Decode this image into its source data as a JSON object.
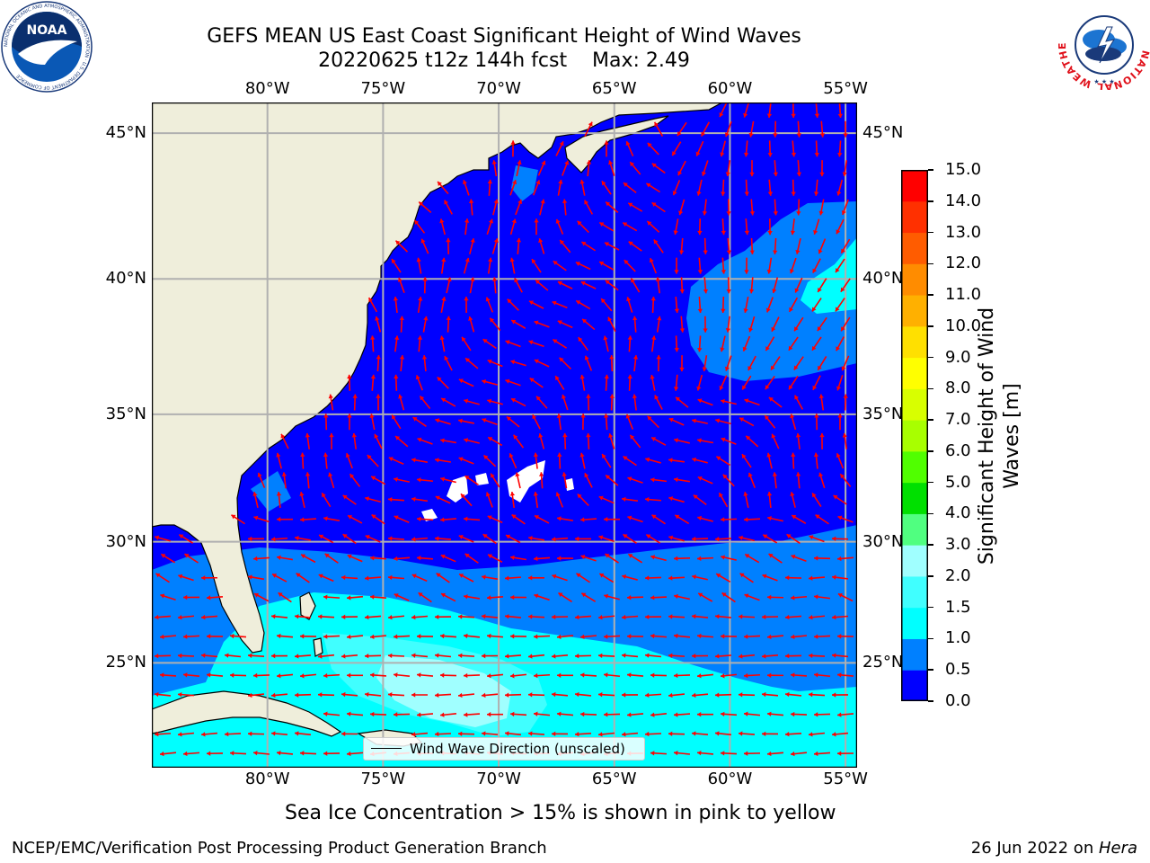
{
  "header": {
    "title_line1": "GEFS MEAN US East Coast Significant Height of Wind Waves",
    "title_line2": "20220625 t12z 144h fcst    Max: 2.49"
  },
  "logos": {
    "noaa_text": "NOAA",
    "noaa_ring_text": "NATIONAL OCEANIC AND ATMOSPHERIC ADMINISTRATION · U.S. DEPARTMENT OF COMMERCE",
    "nws_ring_text": "NATIONAL WEATHER SERVICE"
  },
  "map": {
    "extent": {
      "lon_min": -85,
      "lon_max": -54.5,
      "lat_min": 20.5,
      "lat_max": 46
    },
    "lon_ticks": [
      {
        "lon": -80,
        "label": "80°W"
      },
      {
        "lon": -75,
        "label": "75°W"
      },
      {
        "lon": -70,
        "label": "70°W"
      },
      {
        "lon": -65,
        "label": "65°W"
      },
      {
        "lon": -60,
        "label": "60°W"
      },
      {
        "lon": -55,
        "label": "55°W"
      }
    ],
    "lat_ticks": [
      {
        "lat": 45,
        "label": "45°N"
      },
      {
        "lat": 40,
        "label": "40°N"
      },
      {
        "lat": 35,
        "label": "35°N"
      },
      {
        "lat": 30,
        "label": "30°N"
      },
      {
        "lat": 25,
        "label": "25°N"
      }
    ],
    "colors": {
      "land": "#efeedb",
      "coastline": "#000000",
      "grid": "#b0b0b0",
      "arrow": "#ff0000"
    },
    "legend_label": "Wind Wave Direction (unscaled)"
  },
  "colorbar": {
    "label": "Significant Height of Wind Waves [m]",
    "ticks": [
      "0.0",
      "0.5",
      "1.0",
      "1.5",
      "2.0",
      "3.0",
      "4.0",
      "5.0",
      "6.0",
      "7.0",
      "8.0",
      "9.0",
      "10.0",
      "11.0",
      "12.0",
      "13.0",
      "14.0",
      "15.0"
    ],
    "colors": [
      "#0000ff",
      "#0080ff",
      "#00ffff",
      "#40ffff",
      "#a0ffff",
      "#50ff80",
      "#00e000",
      "#50ff00",
      "#a8ff00",
      "#d8ff00",
      "#ffff00",
      "#ffe000",
      "#ffb000",
      "#ff8c00",
      "#ff5c00",
      "#ff3000",
      "#ff0000"
    ]
  },
  "footer": {
    "sea_ice_note": "Sea Ice Concentration > 15% is shown in pink to yellow",
    "left_text": "NCEP/EMC/Verification Post Processing Product Generation Branch",
    "right_date": "26 Jun 2022 on ",
    "right_machine": "Hera"
  }
}
